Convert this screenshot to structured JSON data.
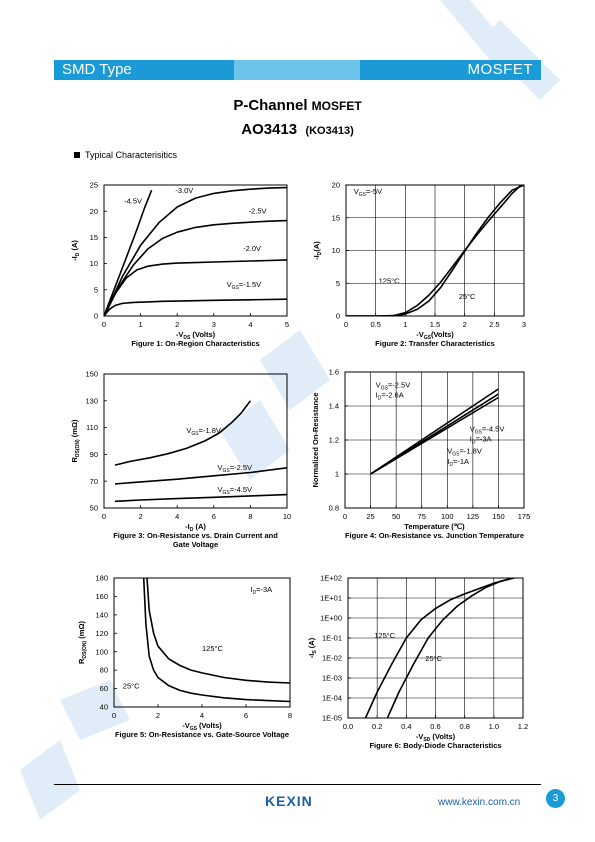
{
  "header": {
    "left_label": "SMD Type",
    "right_label": "MOSFET"
  },
  "title": {
    "main": "P-Channel",
    "main_suffix": "MOSFET",
    "part": "AO3413",
    "alt_part": "(KO3413)"
  },
  "section_label": "Typical  Characterisitics",
  "footer": {
    "logo": "KEXIN",
    "url": "www.kexin.com.cn",
    "page": "3"
  },
  "colors": {
    "banner": "#1a9ad6",
    "watermark": "#dbe9f7",
    "logo": "#1a5fa8"
  },
  "chart_data": [
    {
      "id": "fig1",
      "type": "line",
      "caption": "Figure 1: On-Region Characteristics",
      "xlabel": "-V",
      "xlabel_sub": "DS",
      "xlabel_suffix": " (Volts)",
      "ylabel": "-I",
      "ylabel_sub": "D",
      "ylabel_suffix": " (A)",
      "xlim": [
        0,
        5
      ],
      "ylim": [
        0,
        25
      ],
      "xticks": [
        "0",
        "1",
        "2",
        "3",
        "4",
        "5"
      ],
      "yticks": [
        "0",
        "5",
        "10",
        "15",
        "20",
        "25"
      ],
      "grid": false,
      "series": [
        {
          "name": "-4.5V",
          "x": [
            0,
            0.3,
            0.6,
            0.9,
            1.1,
            1.3
          ],
          "y": [
            0,
            5.5,
            11,
            16.5,
            20.5,
            24
          ]
        },
        {
          "name": "-3.0V",
          "x": [
            0,
            0.5,
            1.0,
            1.5,
            2.0,
            2.5,
            3.0,
            3.5,
            4.0,
            4.5,
            5.0
          ],
          "y": [
            0,
            7.5,
            13.5,
            17.8,
            20.8,
            22.5,
            23.4,
            23.9,
            24.2,
            24.4,
            24.5
          ]
        },
        {
          "name": "-2.5V",
          "x": [
            0,
            0.4,
            0.8,
            1.2,
            1.6,
            2.0,
            2.5,
            3.0,
            3.5,
            4.0,
            4.5,
            5.0
          ],
          "y": [
            0,
            5.5,
            9.7,
            12.8,
            14.8,
            16.0,
            16.9,
            17.4,
            17.7,
            17.9,
            18.1,
            18.2
          ]
        },
        {
          "name": "-2.0V",
          "x": [
            0,
            0.3,
            0.6,
            0.9,
            1.2,
            1.6,
            2.0,
            2.5,
            3.0,
            3.5,
            4.0,
            4.5,
            5.0
          ],
          "y": [
            0,
            4.2,
            7.2,
            8.8,
            9.5,
            9.9,
            10.1,
            10.2,
            10.3,
            10.4,
            10.5,
            10.6,
            10.7
          ]
        },
        {
          "name": "-1.5V",
          "x": [
            0,
            0.15,
            0.3,
            0.5,
            0.8,
            1.2,
            1.6,
            2.0,
            3.0,
            4.0,
            5.0
          ],
          "y": [
            0,
            1.3,
            2.0,
            2.4,
            2.6,
            2.7,
            2.8,
            2.85,
            3.0,
            3.1,
            3.2
          ]
        }
      ],
      "annotations": [
        {
          "text": "-4.5V",
          "x": 0.55,
          "y": 21.5
        },
        {
          "text": "-3.0V",
          "x": 1.95,
          "y": 23.5
        },
        {
          "text": "-2.5V",
          "x": 3.95,
          "y": 19.6
        },
        {
          "text": "-2.0V",
          "x": 3.8,
          "y": 12.4
        },
        {
          "text": "V",
          "sub": "GS",
          "rest": "=-1.5V",
          "x": 3.35,
          "y": 5.5
        }
      ]
    },
    {
      "id": "fig2",
      "type": "line",
      "caption": "Figure 2: Transfer Characteristics",
      "xlabel": "-V",
      "xlabel_sub": "GS",
      "xlabel_suffix": "(Volts)",
      "ylabel": "-I",
      "ylabel_sub": "D",
      "ylabel_suffix": "(A)",
      "xlim": [
        0,
        3
      ],
      "ylim": [
        0,
        20
      ],
      "xticks": [
        "0",
        "0.5",
        "1",
        "1.5",
        "2",
        "2.5",
        "3"
      ],
      "yticks": [
        "0",
        "5",
        "10",
        "15",
        "20"
      ],
      "grid": true,
      "series": [
        {
          "name": "125°C",
          "x": [
            0,
            0.5,
            0.8,
            1.0,
            1.2,
            1.4,
            1.6,
            1.8,
            2.0,
            2.2,
            2.4,
            2.6,
            2.8,
            2.95
          ],
          "y": [
            0,
            0,
            0.05,
            0.5,
            1.6,
            3.2,
            5.2,
            7.6,
            10.0,
            12.3,
            14.5,
            16.6,
            18.7,
            20.0
          ]
        },
        {
          "name": "25°C",
          "x": [
            0,
            0.6,
            0.9,
            1.0,
            1.2,
            1.4,
            1.6,
            1.8,
            2.0,
            2.2,
            2.4,
            2.6,
            2.8,
            3.0
          ],
          "y": [
            0,
            0,
            0.1,
            0.3,
            1.0,
            2.3,
            4.4,
            7.1,
            9.9,
            12.6,
            15.1,
            17.3,
            19.2,
            20.0
          ]
        }
      ],
      "annotations": [
        {
          "text": "V",
          "sub": "GS",
          "rest": "=-5V",
          "x": 0.13,
          "y": 18.6
        },
        {
          "text": "125°C",
          "x": 0.55,
          "y": 5.0
        },
        {
          "text": "25°C",
          "x": 1.9,
          "y": 2.6
        }
      ]
    },
    {
      "id": "fig3",
      "type": "line",
      "caption": "Figure 3: On-Resistance vs. Drain Current and",
      "caption2": "Gate Voltage",
      "xlabel": "-I",
      "xlabel_sub": "D",
      "xlabel_suffix": " (A)",
      "ylabel": "R",
      "ylabel_sub": "DS(ON)",
      "ylabel_suffix": " (mΩ)",
      "xlim": [
        0,
        10
      ],
      "ylim": [
        50,
        150
      ],
      "xticks": [
        "0",
        "2",
        "4",
        "6",
        "8",
        "10"
      ],
      "yticks": [
        "50",
        "70",
        "90",
        "110",
        "130",
        "150"
      ],
      "grid": false,
      "series": [
        {
          "name": "-1.8V",
          "x": [
            0.6,
            1.5,
            2.5,
            3.5,
            4.5,
            5.5,
            6.3,
            7.0,
            7.5,
            8.0
          ],
          "y": [
            82,
            85,
            87.5,
            90.5,
            94.5,
            100,
            106,
            114,
            121,
            130
          ]
        },
        {
          "name": "-2.5V",
          "x": [
            0.6,
            2,
            4,
            6,
            8,
            10
          ],
          "y": [
            68,
            69.5,
            71.5,
            74,
            76.5,
            80
          ]
        },
        {
          "name": "-4.5V",
          "x": [
            0.6,
            2,
            4,
            6,
            8,
            10
          ],
          "y": [
            55,
            56,
            57,
            58,
            59,
            60
          ]
        }
      ],
      "annotations": [
        {
          "text": "V",
          "sub": "GS",
          "rest": "=-1.8V",
          "x": 4.5,
          "y": 106
        },
        {
          "text": "V",
          "sub": "GS",
          "rest": "=-2.5V",
          "x": 6.2,
          "y": 78.5
        },
        {
          "text": "V",
          "sub": "GS",
          "rest": "=-4.5V",
          "x": 6.2,
          "y": 62
        }
      ]
    },
    {
      "id": "fig4",
      "type": "line",
      "caption": "Figure 4: On-Resistance vs. Junction Temperature",
      "xlabel": "Temperature (℃)",
      "ylabel": "Normalized On-Resistance",
      "xlim": [
        0,
        175
      ],
      "ylim": [
        0.8,
        1.6
      ],
      "xticks": [
        "0",
        "25",
        "50",
        "75",
        "100",
        "125",
        "150",
        "175"
      ],
      "yticks": [
        "0.8",
        "1",
        "1.2",
        "1.4",
        "1.6"
      ],
      "grid": true,
      "series": [
        {
          "name": "V_GS=-2.5V, I_D=-2.6A",
          "x": [
            25,
            150
          ],
          "y": [
            1.0,
            1.5
          ]
        },
        {
          "name": "V_GS=-4.5V, I_D=-3A",
          "x": [
            25,
            150
          ],
          "y": [
            1.0,
            1.47
          ]
        },
        {
          "name": "V_GS=-1.8V, I_D=-1A",
          "x": [
            25,
            150
          ],
          "y": [
            1.0,
            1.45
          ]
        }
      ],
      "annotations": [
        {
          "text": "V",
          "sub": "GS",
          "rest": "=-2.5V",
          "x": 30,
          "y": 1.51
        },
        {
          "text": "I",
          "sub": "D",
          "rest": "=-2.6A",
          "x": 30,
          "y": 1.45
        },
        {
          "text": "V",
          "sub": "GS",
          "rest": "=-4.5V",
          "x": 122,
          "y": 1.25
        },
        {
          "text": "I",
          "sub": "D",
          "rest": "=-3A",
          "x": 122,
          "y": 1.19
        },
        {
          "text": "V",
          "sub": "GS",
          "rest": "=-1.8V",
          "x": 100,
          "y": 1.12
        },
        {
          "text": "I",
          "sub": "D",
          "rest": "=-1A",
          "x": 100,
          "y": 1.06
        }
      ]
    },
    {
      "id": "fig5",
      "type": "line",
      "caption": "Figure 5: On-Resistance vs. Gate-Source Voltage",
      "xlabel": "-V",
      "xlabel_sub": "GS",
      "xlabel_suffix": " (Volts)",
      "ylabel": "R",
      "ylabel_sub": "DS(ON)",
      "ylabel_suffix": " (mΩ)",
      "xlim": [
        0,
        8
      ],
      "ylim": [
        40,
        180
      ],
      "xticks": [
        "0",
        "2",
        "4",
        "6",
        "8"
      ],
      "yticks": [
        "40",
        "60",
        "80",
        "100",
        "120",
        "140",
        "160",
        "180"
      ],
      "grid": false,
      "series": [
        {
          "name": "125°C",
          "x": [
            1.5,
            1.6,
            1.8,
            2.0,
            2.5,
            3.0,
            3.5,
            4.0,
            5.0,
            6.0,
            7.0,
            8.0
          ],
          "y": [
            180,
            145,
            120,
            106,
            92,
            85,
            80,
            77,
            72,
            69,
            67,
            66
          ]
        },
        {
          "name": "25°C",
          "x": [
            1.35,
            1.45,
            1.6,
            1.8,
            2.0,
            2.5,
            3.0,
            3.5,
            4.0,
            5.0,
            6.0,
            7.0,
            8.0
          ],
          "y": [
            180,
            130,
            95,
            80,
            72,
            63,
            58,
            55,
            53,
            50,
            48,
            47,
            46
          ]
        }
      ],
      "annotations": [
        {
          "text": "I",
          "sub": "D",
          "rest": "=-3A",
          "x": 6.2,
          "y": 165
        },
        {
          "text": "125°C",
          "x": 4.0,
          "y": 101
        },
        {
          "text": "25°C",
          "x": 0.4,
          "y": 60
        }
      ]
    },
    {
      "id": "fig6",
      "type": "line",
      "caption": "Figure 6: Body-Diode Characteristics",
      "xlabel": "-V",
      "xlabel_sub": "SD",
      "xlabel_suffix": " (Volts)",
      "ylabel": "-I",
      "ylabel_sub": "S",
      "ylabel_suffix": " (A)",
      "xlim": [
        0.0,
        1.2
      ],
      "ylim_log10": [
        -5,
        2
      ],
      "xticks": [
        "0.0",
        "0.2",
        "0.4",
        "0.6",
        "0.8",
        "1.0",
        "1.2"
      ],
      "yticks": [
        "1E-05",
        "1E-04",
        "1E-03",
        "1E-02",
        "1E-01",
        "1E+00",
        "1E+01",
        "1E+02"
      ],
      "grid": true,
      "series": [
        {
          "name": "125°C",
          "x": [
            0.12,
            0.2,
            0.3,
            0.4,
            0.5,
            0.6,
            0.7,
            0.8,
            0.9,
            1.0,
            1.1,
            1.2
          ],
          "y": [
            1e-05,
            0.0002,
            0.005,
            0.1,
            0.8,
            3,
            8,
            16,
            30,
            55,
            85,
            130
          ]
        },
        {
          "name": "25°C",
          "x": [
            0.27,
            0.35,
            0.45,
            0.55,
            0.65,
            0.75,
            0.85,
            0.95,
            1.05,
            1.15,
            1.2
          ],
          "y": [
            1e-05,
            0.0002,
            0.005,
            0.1,
            0.8,
            4,
            13,
            35,
            70,
            110,
            130
          ]
        }
      ],
      "annotations": [
        {
          "text": "125°C",
          "x": 0.18,
          "y_log10": -1.0
        },
        {
          "text": "25°C",
          "x": 0.53,
          "y_log10": -2.15
        }
      ]
    }
  ]
}
